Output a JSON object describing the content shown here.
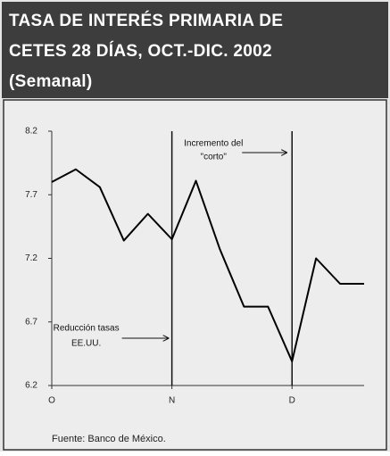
{
  "chart_data": {
    "type": "line",
    "title": [
      "TASA DE INTERÉS PRIMARIA DE",
      "CETES 28 DÍAS, OCT.-DIC. 2002"
    ],
    "subtitle": "(Semanal)",
    "categories": [
      "O",
      null,
      null,
      null,
      null,
      "N",
      null,
      null,
      null,
      null,
      "D",
      null,
      null,
      null
    ],
    "values": [
      7.8,
      7.9,
      7.76,
      7.34,
      7.55,
      7.35,
      7.81,
      7.27,
      6.82,
      6.82,
      6.39,
      7.2,
      7.0,
      7.0
    ],
    "color": "#000000",
    "ylim": [
      6.2,
      8.2
    ],
    "yticks": [
      6.2,
      6.7,
      7.2,
      7.7,
      8.2
    ],
    "vlines": [
      "N",
      "D"
    ],
    "annotations": [
      {
        "lines": [
          "Incremento del",
          "\"corto\""
        ]
      },
      {
        "lines": [
          "Reducción tasas",
          "EE.UU."
        ]
      }
    ],
    "source": "Fuente: Banco de México."
  }
}
